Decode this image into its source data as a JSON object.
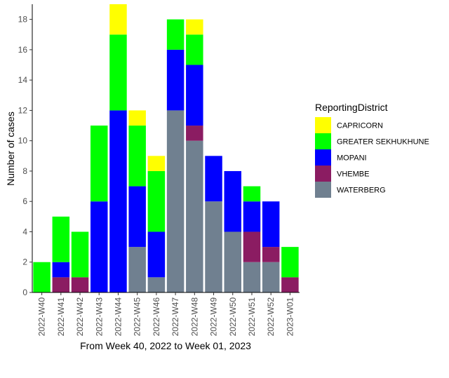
{
  "chart_data": {
    "type": "bar",
    "stacked": true,
    "xlabel": "From Week 40, 2022 to Week 01, 2023",
    "ylabel": "Number of cases",
    "ylim": [
      0,
      19
    ],
    "yticks": [
      0,
      2,
      4,
      6,
      8,
      10,
      12,
      14,
      16,
      18
    ],
    "grid": false,
    "legend": {
      "title": "ReportingDistrict",
      "position": "right"
    },
    "categories": [
      "2022-W40",
      "2022-W41",
      "2022-W42",
      "2022-W43",
      "2022-W44",
      "2022-W45",
      "2022-W46",
      "2022-W47",
      "2022-W48",
      "2022-W49",
      "2022-W50",
      "2022-W51",
      "2022-W52",
      "2023-W01"
    ],
    "series": [
      {
        "name": "WATERBERG",
        "color": "#708090",
        "values": [
          0,
          0,
          0,
          0,
          0,
          3,
          1,
          12,
          10,
          6,
          4,
          2,
          2,
          0
        ]
      },
      {
        "name": "VHEMBE",
        "color": "#8B1C62",
        "values": [
          0,
          1,
          1,
          0,
          0,
          0,
          0,
          0,
          1,
          0,
          0,
          2,
          1,
          1
        ]
      },
      {
        "name": "MOPANI",
        "color": "#0000FF",
        "values": [
          0,
          1,
          0,
          6,
          12,
          4,
          3,
          4,
          4,
          3,
          4,
          2,
          3,
          0
        ]
      },
      {
        "name": "GREATER SEKHUKHUNE",
        "color": "#00FF00",
        "values": [
          2,
          3,
          3,
          5,
          5,
          4,
          4,
          2,
          2,
          0,
          0,
          1,
          0,
          2
        ]
      },
      {
        "name": "CAPRICORN",
        "color": "#FFFF00",
        "values": [
          0,
          0,
          0,
          0,
          2,
          1,
          1,
          0,
          1,
          0,
          0,
          0,
          0,
          0
        ]
      }
    ]
  }
}
